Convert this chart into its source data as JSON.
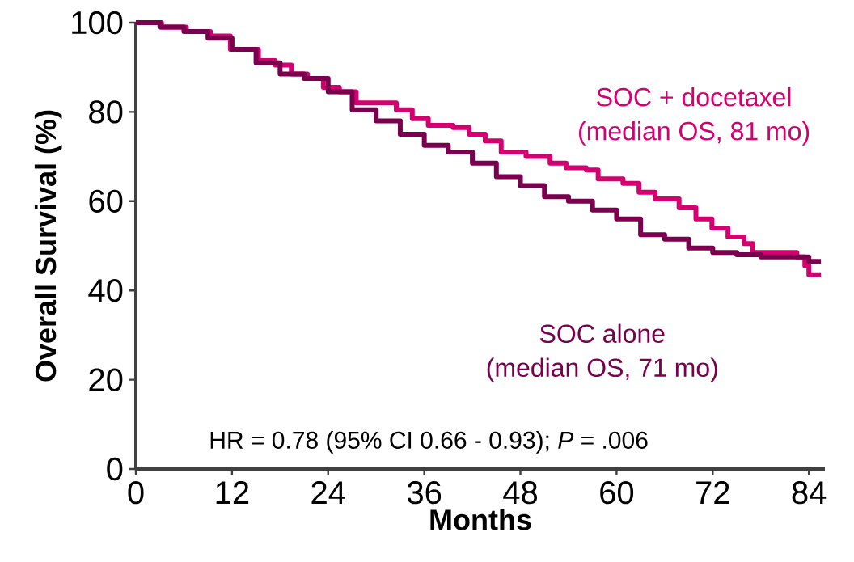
{
  "chart_data": {
    "type": "step",
    "xlabel": "Months",
    "ylabel": "Overall Survival (%)",
    "xlim": [
      0,
      86
    ],
    "ylim": [
      0,
      100
    ],
    "xticks": [
      0,
      12,
      24,
      36,
      48,
      60,
      72,
      84
    ],
    "yticks": [
      0,
      20,
      40,
      60,
      80,
      100
    ],
    "grid": false,
    "legend": false,
    "marker": "none",
    "line_style": "solid",
    "annotations": [
      "(median OS, 81 mo)",
      "(median OS, 71 mo)",
      "HR = 0.78 (95% CI 0.66 - 0.93); *P* = .006"
    ],
    "series": [
      {
        "name": "SOC + docetaxel",
        "color": "#d4006f",
        "x": [
          0,
          3.2,
          6.3,
          9.3,
          11.8,
          15.3,
          17.4,
          19.4,
          21.4,
          23.4,
          25.4,
          27.5,
          32.5,
          34.5,
          36.5,
          39.6,
          41.6,
          43.6,
          45.6,
          48.7,
          51.7,
          53.7,
          56.2,
          57.7,
          60.8,
          62.8,
          64.8,
          67.8,
          69.9,
          71.9,
          73.9,
          75.9,
          77,
          81,
          82.5,
          83.5,
          84,
          85.5
        ],
        "values": [
          100,
          99,
          98,
          97,
          94,
          91.5,
          90.5,
          88.5,
          87.5,
          85.5,
          84.5,
          82,
          80.5,
          78.5,
          77,
          76.5,
          75,
          73.5,
          71,
          70,
          68.5,
          67.5,
          67,
          65,
          64,
          62,
          60.5,
          58.5,
          56,
          54,
          52,
          50.5,
          48.5,
          48.5,
          47.5,
          45.5,
          43.5,
          43.5
        ]
      },
      {
        "name": "SOC alone",
        "color": "#7a004f",
        "x": [
          0,
          3,
          6,
          9,
          12,
          15,
          18,
          21,
          24,
          27,
          30,
          33,
          36,
          39,
          42,
          45,
          48,
          51,
          54,
          57,
          60,
          63,
          66,
          69,
          72,
          75,
          78,
          81,
          84,
          85.5
        ],
        "values": [
          100,
          99,
          98,
          96.5,
          94,
          91,
          88.5,
          87.5,
          84.5,
          80.5,
          78,
          75,
          72.5,
          71,
          68.5,
          65.5,
          63.5,
          61,
          60,
          58,
          56,
          52.5,
          51.5,
          49.5,
          48.5,
          48,
          47.5,
          47.5,
          46.5,
          46.5
        ]
      }
    ]
  }
}
